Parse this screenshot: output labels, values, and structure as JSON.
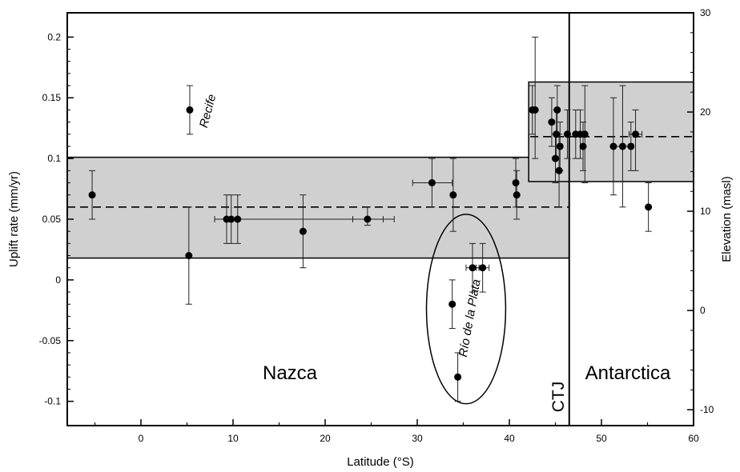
{
  "chart_data": {
    "type": "scatter",
    "xlabel": "Latitude (°S)",
    "ylabel": "Uplift rate (mm/yr)",
    "y2label": "Elevation (masl)",
    "xlim": [
      -8,
      60
    ],
    "ylim": [
      -0.12,
      0.22
    ],
    "y2lim": [
      -11.6,
      30
    ],
    "xticks": [
      0,
      10,
      20,
      30,
      40,
      50,
      60
    ],
    "yticks": [
      -0.1,
      -0.05,
      0,
      0.05,
      0.1,
      0.15,
      0.2
    ],
    "yticklabels": [
      "-0.1",
      "-0.05",
      "0",
      "0.05",
      "0.1",
      "0.15",
      "0.2"
    ],
    "y2ticks": [
      -10,
      0,
      10,
      20,
      30
    ],
    "grid": false,
    "points": [
      {
        "x": -5.3,
        "y": 0.07,
        "ylo": 0.05,
        "yhi": 0.09
      },
      {
        "x": 5.2,
        "y": 0.02,
        "ylo": -0.02,
        "yhi": 0.06
      },
      {
        "x": 5.3,
        "y": 0.14,
        "ylo": 0.12,
        "yhi": 0.16
      },
      {
        "x": 9.3,
        "y": 0.05,
        "ylo": 0.03,
        "yhi": 0.07
      },
      {
        "x": 9.8,
        "y": 0.05,
        "ylo": 0.03,
        "yhi": 0.07
      },
      {
        "x": 10.5,
        "y": 0.05,
        "ylo": 0.03,
        "yhi": 0.07,
        "xlo": 8,
        "xhi": 27.5
      },
      {
        "x": 17.6,
        "y": 0.04,
        "ylo": 0.01,
        "yhi": 0.07
      },
      {
        "x": 24.6,
        "y": 0.05,
        "ylo": 0.045,
        "yhi": 0.06,
        "xlo": 23,
        "xhi": 26.3
      },
      {
        "x": 31.6,
        "y": 0.08,
        "ylo": 0.06,
        "yhi": 0.1,
        "xlo": 29.5,
        "xhi": 33.8
      },
      {
        "x": 33.9,
        "y": 0.07,
        "ylo": 0.04,
        "yhi": 0.1
      },
      {
        "x": 33.8,
        "y": -0.02,
        "ylo": -0.04,
        "yhi": 0
      },
      {
        "x": 34.4,
        "y": -0.08,
        "ylo": -0.1,
        "yhi": -0.06
      },
      {
        "x": 36.0,
        "y": 0.01,
        "ylo": -0.01,
        "yhi": 0.03,
        "xlo": 35.3,
        "xhi": 36.7
      },
      {
        "x": 37.1,
        "y": 0.01,
        "ylo": -0.01,
        "yhi": 0.03,
        "xlo": 36.4,
        "xhi": 37.8
      },
      {
        "x": 40.7,
        "y": 0.08,
        "ylo": 0.06,
        "yhi": 0.1
      },
      {
        "x": 40.8,
        "y": 0.07,
        "ylo": 0.05,
        "yhi": 0.09
      },
      {
        "x": 42.5,
        "y": 0.14,
        "ylo": 0.12,
        "yhi": 0.16
      },
      {
        "x": 42.8,
        "y": 0.14,
        "ylo": 0.1,
        "yhi": 0.2
      },
      {
        "x": 44.6,
        "y": 0.13,
        "ylo": 0.11,
        "yhi": 0.15
      },
      {
        "x": 45.0,
        "y": 0.1,
        "ylo": 0.08,
        "yhi": 0.12
      },
      {
        "x": 45.1,
        "y": 0.12,
        "ylo": 0.1,
        "yhi": 0.14
      },
      {
        "x": 45.2,
        "y": 0.14,
        "ylo": 0.12,
        "yhi": 0.16
      },
      {
        "x": 45.4,
        "y": 0.09,
        "ylo": 0.06,
        "yhi": 0.12
      },
      {
        "x": 45.5,
        "y": 0.11,
        "ylo": 0.09,
        "yhi": 0.13
      },
      {
        "x": 46.3,
        "y": 0.12,
        "ylo": 0.1,
        "yhi": 0.14
      },
      {
        "x": 47.2,
        "y": 0.12,
        "ylo": 0.1,
        "yhi": 0.14
      },
      {
        "x": 47.7,
        "y": 0.12,
        "ylo": 0.1,
        "yhi": 0.14
      },
      {
        "x": 48.0,
        "y": 0.11,
        "ylo": 0.09,
        "yhi": 0.13
      },
      {
        "x": 48.2,
        "y": 0.12,
        "ylo": 0.08,
        "yhi": 0.16
      },
      {
        "x": 51.3,
        "y": 0.11,
        "ylo": 0.07,
        "yhi": 0.15
      },
      {
        "x": 52.3,
        "y": 0.11,
        "ylo": 0.06,
        "yhi": 0.16,
        "xlo": 51.2,
        "xhi": 53.4
      },
      {
        "x": 53.2,
        "y": 0.11,
        "ylo": 0.09,
        "yhi": 0.13
      },
      {
        "x": 53.7,
        "y": 0.12,
        "ylo": 0.09,
        "yhi": 0.14,
        "xlo": 53,
        "xhi": 54.4
      },
      {
        "x": 55.1,
        "y": 0.06,
        "ylo": 0.04,
        "yhi": 0.08
      }
    ],
    "bands": [
      {
        "name": "Nazca",
        "x0": -8,
        "x1": 46.5,
        "y0": 0.018,
        "y1": 0.101,
        "mean": 0.06
      },
      {
        "name": "Antarctica",
        "x0": 42.1,
        "x1": 60,
        "y0": 0.081,
        "y1": 0.163,
        "mean": 0.118
      }
    ],
    "boundary": {
      "name": "CTJ",
      "x": 46.5
    },
    "annotations": {
      "recife": "Recife",
      "rio_de_la_plata": "Río de la Plata",
      "nazca": "Nazca",
      "antarctica": "Antarctica",
      "ctj": "CTJ"
    },
    "ellipse": {
      "cx": 35.3,
      "cy": -0.024,
      "rx": 4.3,
      "ry": 0.078
    }
  }
}
